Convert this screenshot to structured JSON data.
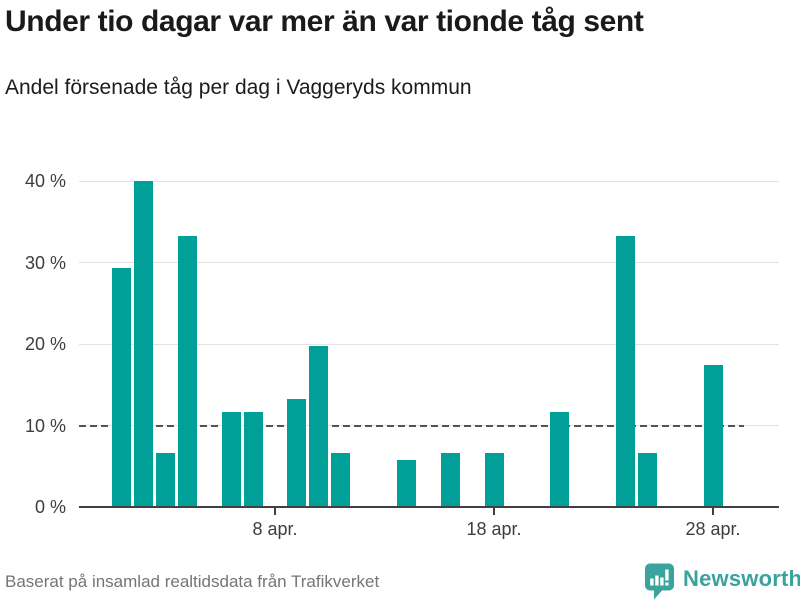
{
  "header": {
    "title": "Under tio dagar var mer än var tionde tåg sent",
    "subtitle": "Andel försenade tåg per dag i Vaggeryds kommun"
  },
  "chart_data": {
    "type": "bar",
    "title": "Under tio dagar var mer än var tionde tåg sent",
    "subtitle": "Andel försenade tåg per dag i Vaggeryds kommun",
    "unit": "percent of delayed trains per day",
    "categories": [
      "1 apr.",
      "2 apr.",
      "3 apr.",
      "4 apr.",
      "5 apr.",
      "6 apr.",
      "7 apr.",
      "8 apr.",
      "9 apr.",
      "10 apr.",
      "11 apr.",
      "12 apr.",
      "13 apr.",
      "14 apr.",
      "15 apr.",
      "16 apr.",
      "17 apr.",
      "18 apr.",
      "19 apr.",
      "20 apr.",
      "21 apr.",
      "22 apr.",
      "23 apr.",
      "24 apr.",
      "25 apr.",
      "26 apr.",
      "27 apr.",
      "28 apr.",
      "29 apr.",
      "30 apr."
    ],
    "values": [
      29.3,
      40,
      6.6,
      33.3,
      0,
      11.7,
      11.7,
      0,
      13.3,
      19.8,
      6.6,
      0,
      0,
      5.8,
      0,
      6.6,
      0,
      6.6,
      0,
      0,
      11.7,
      0,
      0,
      33.3,
      6.6,
      0,
      0,
      17.5,
      0,
      0
    ],
    "ylim": [
      0,
      40
    ],
    "yticks": [
      0,
      10,
      20,
      30,
      40
    ],
    "ytick_labels": [
      "0 %",
      "10 %",
      "20 %",
      "30 %",
      "40 %"
    ],
    "xticks": [
      {
        "day": 8,
        "label": "8 apr."
      },
      {
        "day": 18,
        "label": "18 apr."
      },
      {
        "day": 28,
        "label": "28 apr."
      }
    ],
    "reference_line": {
      "value": 10,
      "style": "dashed"
    },
    "grid": true,
    "legend": "none",
    "bar_color": "#00a099"
  },
  "footer": {
    "source": "Baserat på insamlad realtidsdata från Trafikverket",
    "brand": "Newsworthy"
  },
  "colors": {
    "bar": "#00a099",
    "brand": "#3aa39b",
    "title_text": "#1a1a1a",
    "axis_text": "#3d3d3d",
    "grid_line": "#e2e2e2",
    "axis_line": "#404040",
    "reference_line": "#545454",
    "source_text": "#757575",
    "background": "#ffffff"
  }
}
